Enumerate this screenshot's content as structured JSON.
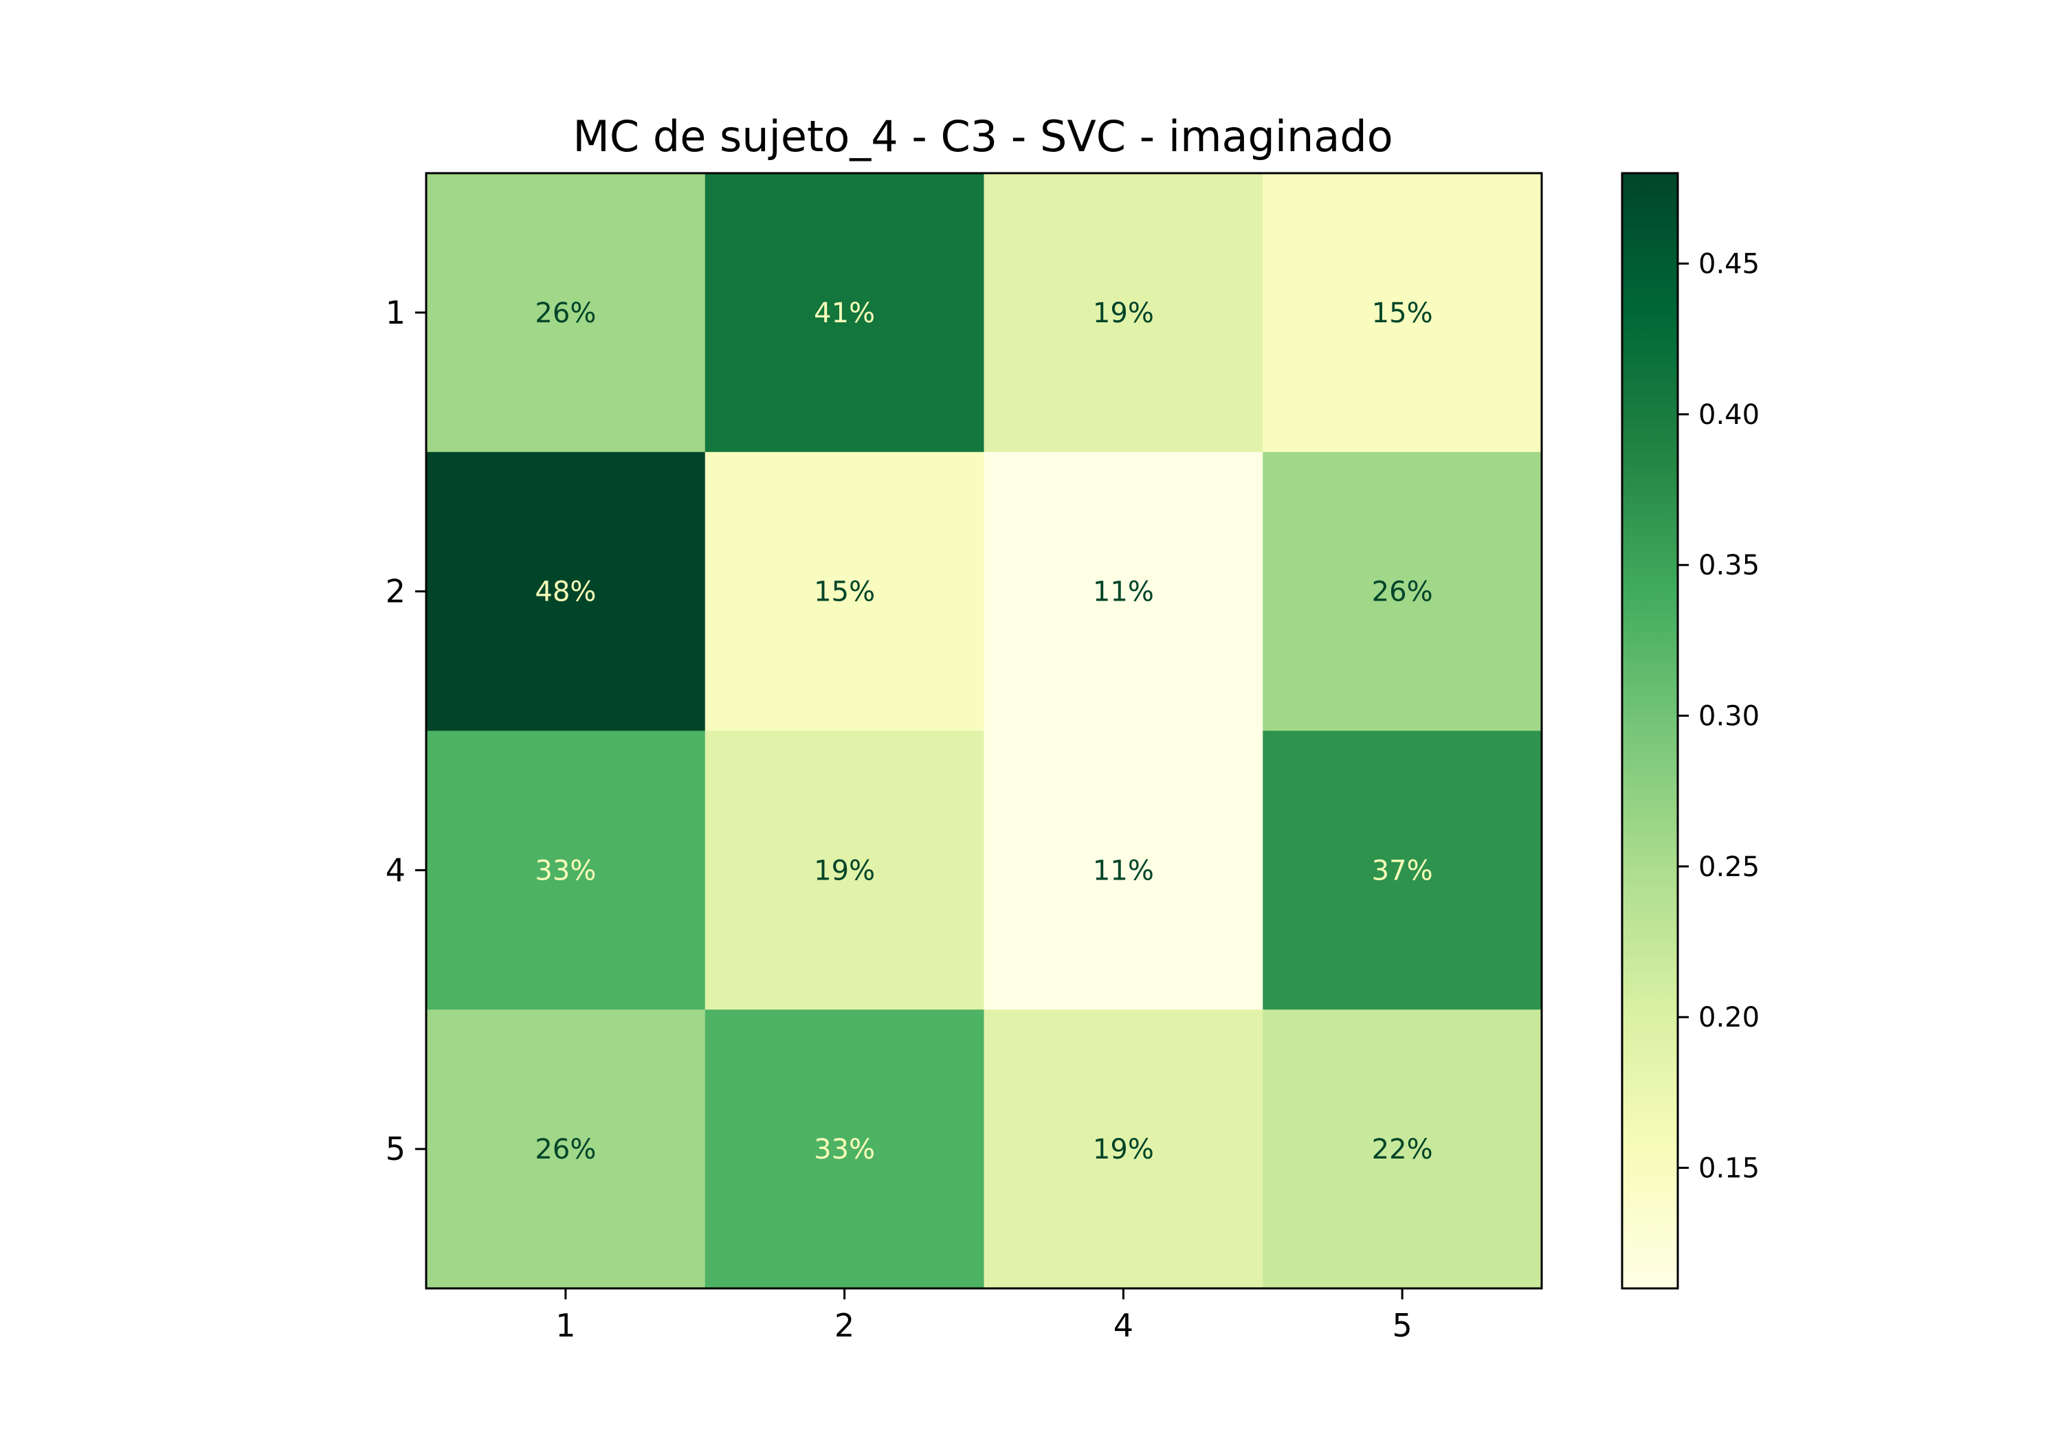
{
  "chart_data": {
    "type": "heatmap",
    "title": "MC de sujeto_4 - C3 - SVC - imaginado",
    "row_labels": [
      "1",
      "2",
      "4",
      "5"
    ],
    "col_labels": [
      "1",
      "2",
      "4",
      "5"
    ],
    "values": [
      [
        0.26,
        0.41,
        0.19,
        0.15
      ],
      [
        0.48,
        0.15,
        0.11,
        0.26
      ],
      [
        0.33,
        0.19,
        0.11,
        0.37
      ],
      [
        0.26,
        0.33,
        0.19,
        0.22
      ]
    ],
    "cell_labels": [
      [
        "26%",
        "41%",
        "19%",
        "15%"
      ],
      [
        "48%",
        "15%",
        "11%",
        "26%"
      ],
      [
        "33%",
        "19%",
        "11%",
        "37%"
      ],
      [
        "26%",
        "33%",
        "19%",
        "22%"
      ]
    ],
    "colormap": "YlGn",
    "colorbar": {
      "min": 0.11,
      "max": 0.48,
      "ticks": [
        0.15,
        0.2,
        0.25,
        0.3,
        0.35,
        0.4,
        0.45
      ],
      "tick_labels": [
        "0.15",
        "0.20",
        "0.25",
        "0.30",
        "0.35",
        "0.40",
        "0.45"
      ]
    },
    "xlabel": "",
    "ylabel": ""
  },
  "colors": {
    "cmap_stops": [
      "#ffffe5",
      "#f7fcb9",
      "#d9f0a3",
      "#addd8e",
      "#78c679",
      "#41ab5d",
      "#238443",
      "#006837",
      "#004529"
    ],
    "text_dark": "#004529",
    "text_light": "#f7fcb9",
    "axis": "#000000"
  }
}
